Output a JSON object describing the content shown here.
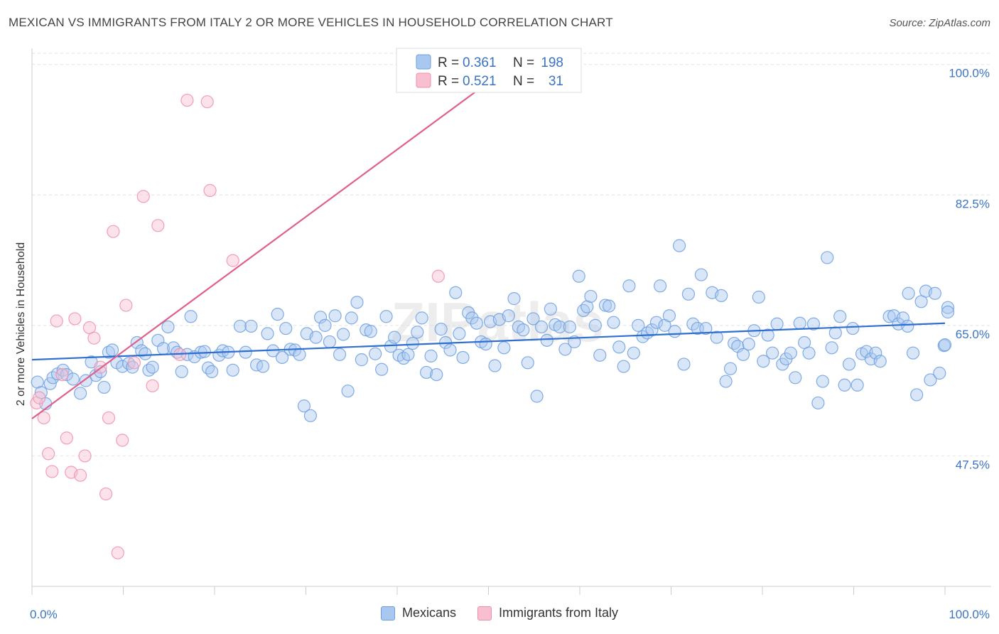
{
  "header": {
    "title": "MEXICAN VS IMMIGRANTS FROM ITALY 2 OR MORE VEHICLES IN HOUSEHOLD CORRELATION CHART",
    "source": "Source: ZipAtlas.com"
  },
  "watermark": "ZIPatlas",
  "colors": {
    "blue_fill": "#a9c8f0",
    "blue_stroke": "#6d9fe0",
    "blue_line": "#2f6fd1",
    "pink_fill": "#f8bfd0",
    "pink_stroke": "#ef8fab",
    "pink_line": "#e0608c",
    "grid": "#dddddd",
    "label": "#3b73c4"
  },
  "stats_legend": {
    "rows": [
      {
        "r_label": "R =",
        "r_value": "0.361",
        "n_label": "N =",
        "n_value": "198"
      },
      {
        "r_label": "R =",
        "r_value": "0.521",
        "n_label": "N =",
        "n_value": "31"
      }
    ]
  },
  "bottom_legend": [
    "Mexicans",
    "Immigrants from Italy"
  ],
  "chart_data": {
    "type": "scatter",
    "title": "MEXICAN VS IMMIGRANTS FROM ITALY 2 OR MORE VEHICLES IN HOUSEHOLD CORRELATION CHART",
    "xlabel": "",
    "ylabel": "2 or more Vehicles in Household",
    "xlim": [
      0,
      100
    ],
    "ylim": [
      30.0,
      101.5
    ],
    "y_ticks": [
      {
        "value": 47.5,
        "label": "47.5%"
      },
      {
        "value": 65.0,
        "label": "65.0%"
      },
      {
        "value": 82.5,
        "label": "82.5%"
      },
      {
        "value": 100.0,
        "label": "100.0%"
      }
    ],
    "x_tick_labels": [
      {
        "value": 0,
        "label": "0.0%"
      },
      {
        "value": 100,
        "label": "100.0%"
      }
    ],
    "grid": true,
    "series": [
      {
        "name": "Mexicans",
        "color": "#a9c8f0",
        "trend": {
          "x": [
            0,
            100
          ],
          "y": [
            60.4,
            65.3
          ]
        },
        "points": [
          [
            0.6,
            57.4
          ],
          [
            1.0,
            56.0
          ],
          [
            1.5,
            54.5
          ],
          [
            2.0,
            57.2
          ],
          [
            2.3,
            58.0
          ],
          [
            2.8,
            58.5
          ],
          [
            3.4,
            59.0
          ],
          [
            3.8,
            58.4
          ],
          [
            4.5,
            57.8
          ],
          [
            5.3,
            55.9
          ],
          [
            5.9,
            57.6
          ],
          [
            6.5,
            60.1
          ],
          [
            7.0,
            58.3
          ],
          [
            7.5,
            58.8
          ],
          [
            7.9,
            56.7
          ],
          [
            8.4,
            61.4
          ],
          [
            8.8,
            61.7
          ],
          [
            9.3,
            60.0
          ],
          [
            9.9,
            59.5
          ],
          [
            10.6,
            59.9
          ],
          [
            11.0,
            59.4
          ],
          [
            11.5,
            62.7
          ],
          [
            12.0,
            61.6
          ],
          [
            12.4,
            61.2
          ],
          [
            12.8,
            59.0
          ],
          [
            13.2,
            59.4
          ],
          [
            13.8,
            63.0
          ],
          [
            14.4,
            61.9
          ],
          [
            14.9,
            64.8
          ],
          [
            15.5,
            62.0
          ],
          [
            15.9,
            61.4
          ],
          [
            16.4,
            58.8
          ],
          [
            17.0,
            61.1
          ],
          [
            17.4,
            66.2
          ],
          [
            17.8,
            60.8
          ],
          [
            18.5,
            61.4
          ],
          [
            18.9,
            61.5
          ],
          [
            19.3,
            59.3
          ],
          [
            19.7,
            58.8
          ],
          [
            20.5,
            61.0
          ],
          [
            20.9,
            61.6
          ],
          [
            21.5,
            61.4
          ],
          [
            22.0,
            59.0
          ],
          [
            22.8,
            64.9
          ],
          [
            23.4,
            61.4
          ],
          [
            24.0,
            64.9
          ],
          [
            24.6,
            59.7
          ],
          [
            25.3,
            59.5
          ],
          [
            25.8,
            63.9
          ],
          [
            26.4,
            61.6
          ],
          [
            26.9,
            66.5
          ],
          [
            27.4,
            60.7
          ],
          [
            27.8,
            64.6
          ],
          [
            28.3,
            61.8
          ],
          [
            28.8,
            61.7
          ],
          [
            29.3,
            61.1
          ],
          [
            29.8,
            54.2
          ],
          [
            30.1,
            63.9
          ],
          [
            30.5,
            52.9
          ],
          [
            31.1,
            63.4
          ],
          [
            31.6,
            66.1
          ],
          [
            32.1,
            65.0
          ],
          [
            32.6,
            62.8
          ],
          [
            33.2,
            66.3
          ],
          [
            33.7,
            61.1
          ],
          [
            34.1,
            63.8
          ],
          [
            34.6,
            56.2
          ],
          [
            35.0,
            66.0
          ],
          [
            35.6,
            68.1
          ],
          [
            36.1,
            60.4
          ],
          [
            36.6,
            64.4
          ],
          [
            37.1,
            64.2
          ],
          [
            37.6,
            61.2
          ],
          [
            38.3,
            59.1
          ],
          [
            38.8,
            66.2
          ],
          [
            39.3,
            62.2
          ],
          [
            39.7,
            63.4
          ],
          [
            40.2,
            61.0
          ],
          [
            40.7,
            60.6
          ],
          [
            41.2,
            61.1
          ],
          [
            41.7,
            62.6
          ],
          [
            42.2,
            64.1
          ],
          [
            42.7,
            66.0
          ],
          [
            43.2,
            58.7
          ],
          [
            43.7,
            60.9
          ],
          [
            44.3,
            58.4
          ],
          [
            44.8,
            64.5
          ],
          [
            45.3,
            62.7
          ],
          [
            45.8,
            61.7
          ],
          [
            46.4,
            69.4
          ],
          [
            46.8,
            63.9
          ],
          [
            47.2,
            60.7
          ],
          [
            47.8,
            66.7
          ],
          [
            48.2,
            66.0
          ],
          [
            48.7,
            65.3
          ],
          [
            49.2,
            62.8
          ],
          [
            49.7,
            62.5
          ],
          [
            50.2,
            65.5
          ],
          [
            50.7,
            59.6
          ],
          [
            51.2,
            65.8
          ],
          [
            51.7,
            62.0
          ],
          [
            52.2,
            66.3
          ],
          [
            52.8,
            68.6
          ],
          [
            53.3,
            64.8
          ],
          [
            53.8,
            64.4
          ],
          [
            54.3,
            60.0
          ],
          [
            54.9,
            65.9
          ],
          [
            55.3,
            55.5
          ],
          [
            55.8,
            64.8
          ],
          [
            56.4,
            63.0
          ],
          [
            56.8,
            67.2
          ],
          [
            57.3,
            65.1
          ],
          [
            57.8,
            64.8
          ],
          [
            58.4,
            61.8
          ],
          [
            58.9,
            64.8
          ],
          [
            59.4,
            62.8
          ],
          [
            59.9,
            71.6
          ],
          [
            60.4,
            67.0
          ],
          [
            60.8,
            67.5
          ],
          [
            61.2,
            68.9
          ],
          [
            61.7,
            65.0
          ],
          [
            62.2,
            61.0
          ],
          [
            62.8,
            67.7
          ],
          [
            63.2,
            67.6
          ],
          [
            63.7,
            65.4
          ],
          [
            64.3,
            62.1
          ],
          [
            64.8,
            59.5
          ],
          [
            65.4,
            70.3
          ],
          [
            65.9,
            61.3
          ],
          [
            66.4,
            65.0
          ],
          [
            66.9,
            63.5
          ],
          [
            67.4,
            64.0
          ],
          [
            67.9,
            64.4
          ],
          [
            68.4,
            65.4
          ],
          [
            68.8,
            70.3
          ],
          [
            69.3,
            65.0
          ],
          [
            69.8,
            66.3
          ],
          [
            70.4,
            64.2
          ],
          [
            70.9,
            75.7
          ],
          [
            71.4,
            59.8
          ],
          [
            71.9,
            69.2
          ],
          [
            72.4,
            65.2
          ],
          [
            72.9,
            64.6
          ],
          [
            73.3,
            71.8
          ],
          [
            73.8,
            64.6
          ],
          [
            74.5,
            69.4
          ],
          [
            75.0,
            63.4
          ],
          [
            75.5,
            69.0
          ],
          [
            76.0,
            57.5
          ],
          [
            76.5,
            59.2
          ],
          [
            76.9,
            62.6
          ],
          [
            77.3,
            62.2
          ],
          [
            77.9,
            61.1
          ],
          [
            78.5,
            62.5
          ],
          [
            79.1,
            64.3
          ],
          [
            79.6,
            68.8
          ],
          [
            80.1,
            60.2
          ],
          [
            80.6,
            63.7
          ],
          [
            81.1,
            61.3
          ],
          [
            81.6,
            65.2
          ],
          [
            82.2,
            59.8
          ],
          [
            82.6,
            60.5
          ],
          [
            83.1,
            61.3
          ],
          [
            83.6,
            58.0
          ],
          [
            84.1,
            65.3
          ],
          [
            84.6,
            62.7
          ],
          [
            85.1,
            61.3
          ],
          [
            85.6,
            65.2
          ],
          [
            86.1,
            54.6
          ],
          [
            86.6,
            57.5
          ],
          [
            87.1,
            74.1
          ],
          [
            87.6,
            62.0
          ],
          [
            88.0,
            64.0
          ],
          [
            88.5,
            66.2
          ],
          [
            89.0,
            57.0
          ],
          [
            89.5,
            59.8
          ],
          [
            89.9,
            64.6
          ],
          [
            90.4,
            57.0
          ],
          [
            90.9,
            61.2
          ],
          [
            91.4,
            61.5
          ],
          [
            91.9,
            60.5
          ],
          [
            92.4,
            61.3
          ],
          [
            92.9,
            60.2
          ],
          [
            93.9,
            66.2
          ],
          [
            94.4,
            66.3
          ],
          [
            94.9,
            65.2
          ],
          [
            95.4,
            66.0
          ],
          [
            96.0,
            69.3
          ],
          [
            96.5,
            61.3
          ],
          [
            96.9,
            55.7
          ],
          [
            97.4,
            68.2
          ],
          [
            97.9,
            69.6
          ],
          [
            98.4,
            57.7
          ],
          [
            98.9,
            69.3
          ],
          [
            99.4,
            58.6
          ],
          [
            99.9,
            62.3
          ],
          [
            100.0,
            62.4
          ],
          [
            101.0,
            67.4
          ],
          [
            101.5,
            66.8
          ],
          [
            95.9,
            64.9
          ]
        ]
      },
      {
        "name": "Immigrants from Italy",
        "color": "#f8bfd0",
        "trend": {
          "x": [
            0,
            50.2
          ],
          "y": [
            52.5,
            97.8
          ]
        },
        "points": [
          [
            0.5,
            54.6
          ],
          [
            0.8,
            55.3
          ],
          [
            1.3,
            52.6
          ],
          [
            1.8,
            47.8
          ],
          [
            2.2,
            45.4
          ],
          [
            2.7,
            65.6
          ],
          [
            3.3,
            58.4
          ],
          [
            3.8,
            49.9
          ],
          [
            4.3,
            45.3
          ],
          [
            4.7,
            65.9
          ],
          [
            5.3,
            44.9
          ],
          [
            5.8,
            47.5
          ],
          [
            6.3,
            64.7
          ],
          [
            6.8,
            63.3
          ],
          [
            7.5,
            59.4
          ],
          [
            8.1,
            42.4
          ],
          [
            8.4,
            52.6
          ],
          [
            8.9,
            77.6
          ],
          [
            9.4,
            34.5
          ],
          [
            9.9,
            49.6
          ],
          [
            10.3,
            67.7
          ],
          [
            11.2,
            60.0
          ],
          [
            12.2,
            82.3
          ],
          [
            13.2,
            56.9
          ],
          [
            13.8,
            78.4
          ],
          [
            16.2,
            61.1
          ],
          [
            17.0,
            95.2
          ],
          [
            19.2,
            95.0
          ],
          [
            19.5,
            83.1
          ],
          [
            22.0,
            73.7
          ],
          [
            44.5,
            71.6
          ]
        ]
      }
    ]
  }
}
